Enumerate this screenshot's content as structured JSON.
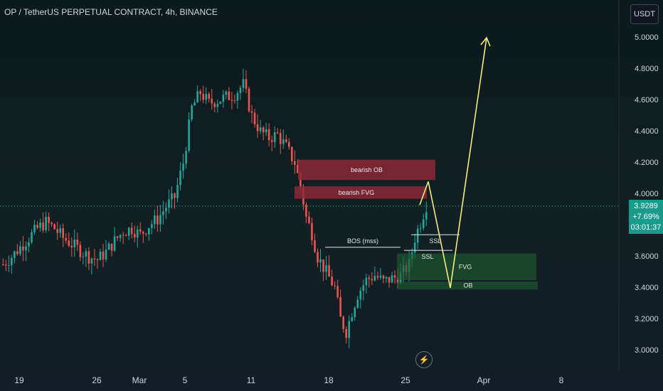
{
  "header": {
    "title": "OP / TetherUS PERPETUAL CONTRACT, 4h, BINANCE",
    "currency": "USDT"
  },
  "price_label": {
    "price": "3.9289",
    "change": "+7.69%",
    "countdown": "03:01:37"
  },
  "chart_data": {
    "type": "candlestick",
    "symbol": "OP / TetherUS PERPETUAL CONTRACT",
    "interval": "4h",
    "exchange": "BINANCE",
    "y_ticks": [
      "5.0000",
      "4.8000",
      "4.6000",
      "4.4000",
      "4.2000",
      "4.0000",
      "3.6000",
      "3.4000",
      "3.2000",
      "3.0000"
    ],
    "ylim": [
      2.85,
      5.2
    ],
    "x_ticks": [
      "19",
      "26",
      "Mar",
      "5",
      "11",
      "18",
      "25",
      "Apr",
      "8"
    ],
    "last_price": 3.9289,
    "trend_points": [
      [
        0,
        3.55
      ],
      [
        3,
        3.6
      ],
      [
        6,
        3.66
      ],
      [
        9,
        3.72
      ],
      [
        12,
        3.78
      ],
      [
        15,
        3.82
      ],
      [
        18,
        3.78
      ],
      [
        21,
        3.72
      ],
      [
        24,
        3.68
      ],
      [
        27,
        3.64
      ],
      [
        30,
        3.6
      ],
      [
        33,
        3.58
      ],
      [
        36,
        3.63
      ],
      [
        39,
        3.7
      ],
      [
        42,
        3.76
      ],
      [
        45,
        3.78
      ],
      [
        48,
        3.74
      ],
      [
        51,
        3.8
      ],
      [
        54,
        3.84
      ],
      [
        57,
        3.92
      ],
      [
        60,
        3.98
      ],
      [
        63,
        4.2
      ],
      [
        66,
        4.55
      ],
      [
        69,
        4.65
      ],
      [
        72,
        4.58
      ],
      [
        75,
        4.6
      ],
      [
        78,
        4.62
      ],
      [
        81,
        4.64
      ],
      [
        84,
        4.7
      ],
      [
        87,
        4.5
      ],
      [
        90,
        4.4
      ],
      [
        93,
        4.36
      ],
      [
        96,
        4.38
      ],
      [
        99,
        4.3
      ],
      [
        102,
        4.2
      ],
      [
        104,
        4.05
      ],
      [
        106,
        3.85
      ],
      [
        108,
        3.75
      ],
      [
        110,
        3.6
      ],
      [
        113,
        3.5
      ],
      [
        116,
        3.4
      ],
      [
        118,
        3.2
      ],
      [
        120,
        3.12
      ],
      [
        122,
        3.25
      ],
      [
        124,
        3.36
      ],
      [
        127,
        3.45
      ],
      [
        130,
        3.48
      ],
      [
        133,
        3.44
      ],
      [
        136,
        3.46
      ],
      [
        139,
        3.48
      ],
      [
        142,
        3.55
      ],
      [
        144,
        3.72
      ],
      [
        146,
        3.82
      ],
      [
        148,
        3.93
      ]
    ],
    "zones": [
      {
        "label": "bearish OB",
        "top": 4.22,
        "bottom": 4.09
      },
      {
        "label": "bearish FVG",
        "top": 4.05,
        "bottom": 3.97
      },
      {
        "label": "FVG",
        "top": 3.62,
        "bottom": 3.45
      },
      {
        "label": "OB",
        "top": 3.44,
        "bottom": 3.39
      }
    ],
    "annotations": [
      {
        "label": "BOS (mss)",
        "price": 3.66
      },
      {
        "label": "SSL",
        "price": 3.74
      },
      {
        "label": "SSL",
        "price": 3.64
      }
    ],
    "projection": [
      [
        3.93,
        4.08
      ],
      [
        4.08,
        3.4
      ],
      [
        3.4,
        5.0
      ]
    ],
    "colors": {
      "up": "#26a69a",
      "down": "#ef5350",
      "projection": "#f5ec7a",
      "bearish_zone": "#7a2a35",
      "bullish_zone": "#1f4a30",
      "text": "#d1d4dc"
    }
  }
}
